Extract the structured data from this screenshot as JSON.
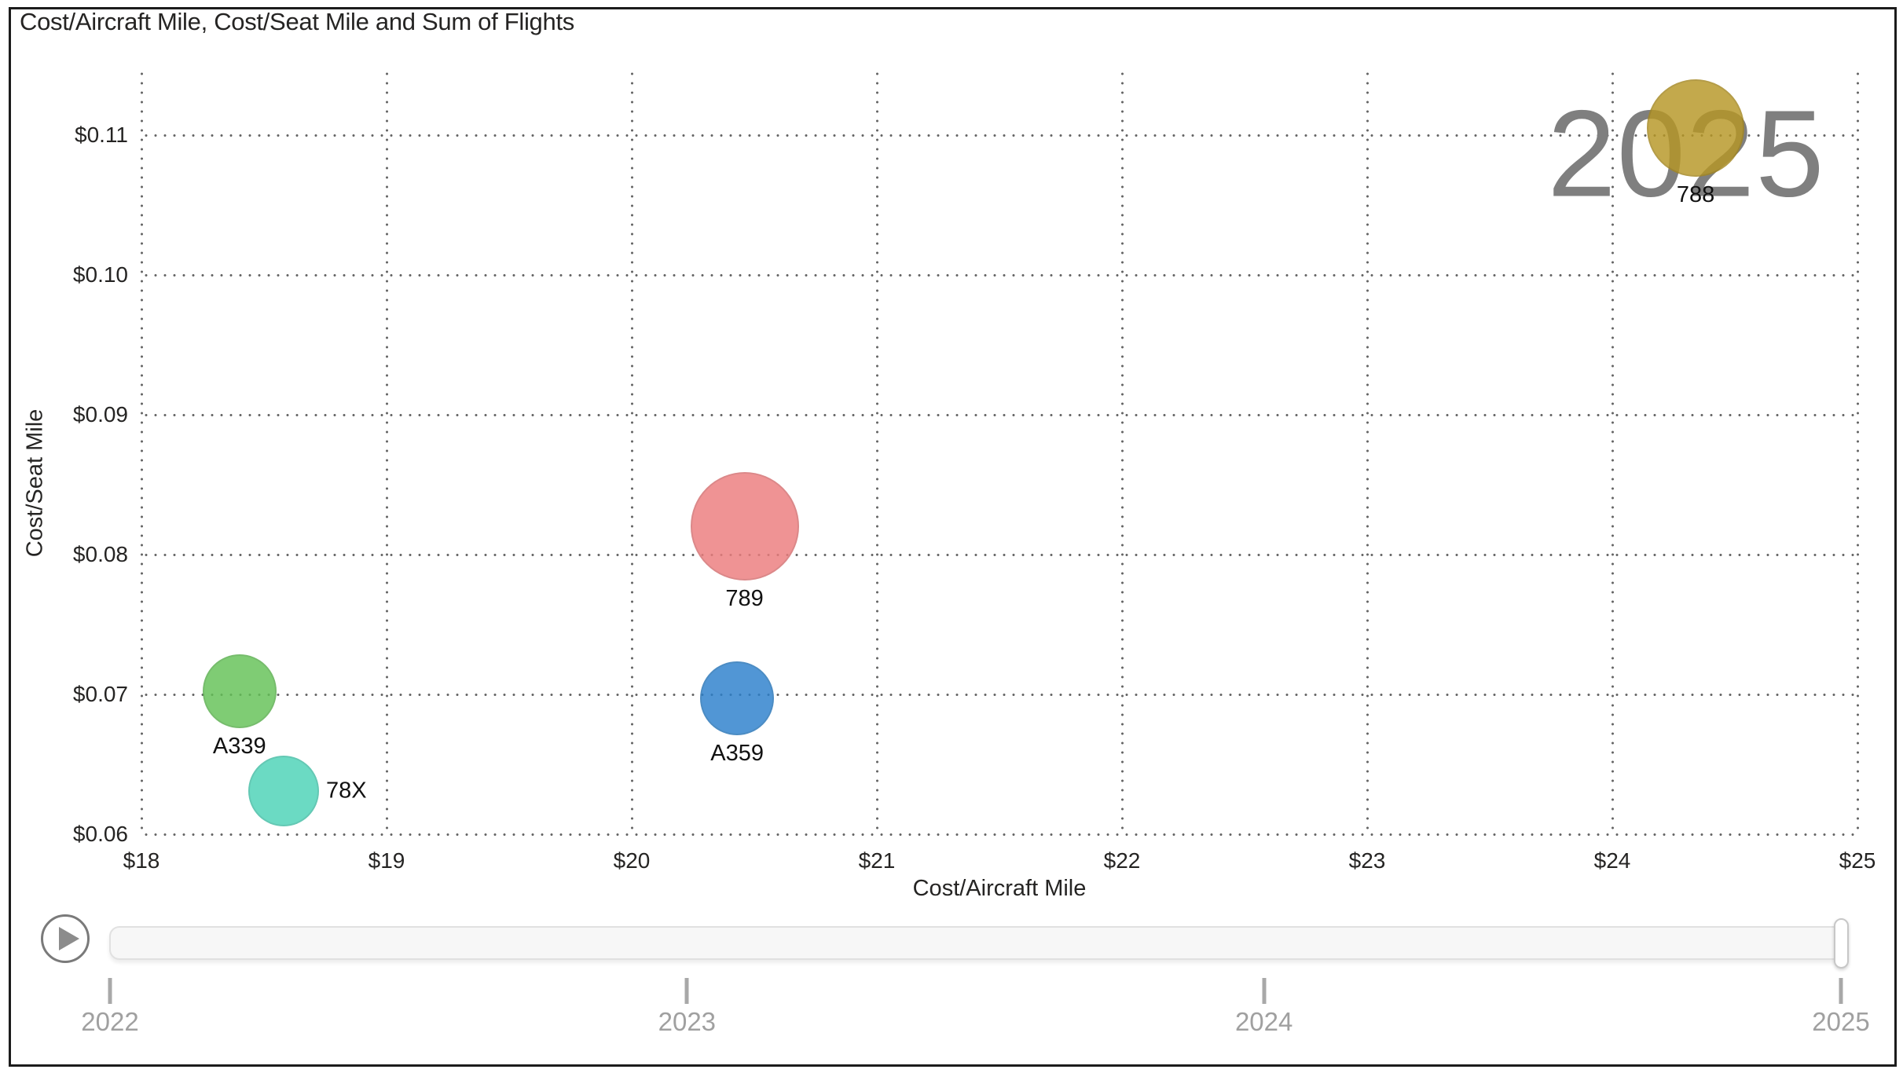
{
  "title": "Cost/Aircraft Mile, Cost/Seat Mile and Sum of Flights",
  "chart_data": {
    "type": "scatter",
    "title": "Cost/Aircraft Mile, Cost/Seat Mile and Sum of Flights",
    "xlabel": "Cost/Aircraft Mile",
    "ylabel": "Cost/Seat Mile",
    "size_measure": "Sum of Flights",
    "xlim": [
      18,
      25
    ],
    "ylim": [
      0.06,
      0.115
    ],
    "grid": "dotted",
    "x_ticks": [
      {
        "value": 18,
        "label": "$18"
      },
      {
        "value": 19,
        "label": "$19"
      },
      {
        "value": 20,
        "label": "$20"
      },
      {
        "value": 21,
        "label": "$21"
      },
      {
        "value": 22,
        "label": "$22"
      },
      {
        "value": 23,
        "label": "$23"
      },
      {
        "value": 24,
        "label": "$24"
      },
      {
        "value": 25,
        "label": "$25"
      }
    ],
    "y_ticks": [
      {
        "value": 0.06,
        "label": "$0.06"
      },
      {
        "value": 0.07,
        "label": "$0.07"
      },
      {
        "value": 0.08,
        "label": "$0.08"
      },
      {
        "value": 0.09,
        "label": "$0.09"
      },
      {
        "value": 0.1,
        "label": "$0.10"
      },
      {
        "value": 0.11,
        "label": "$0.11"
      }
    ],
    "points": [
      {
        "label": "A339",
        "x": 18.4,
        "y": 0.0702,
        "radius_px": 47,
        "color": "#63C256",
        "label_pos": "below"
      },
      {
        "label": "78X",
        "x": 18.58,
        "y": 0.0631,
        "radius_px": 45,
        "color": "#4BD3B7",
        "label_pos": "right"
      },
      {
        "label": "789",
        "x": 20.46,
        "y": 0.082,
        "radius_px": 69,
        "color": "#EC7C7D",
        "label_pos": "below"
      },
      {
        "label": "A359",
        "x": 20.43,
        "y": 0.0697,
        "radius_px": 47,
        "color": "#2B80CC",
        "label_pos": "below"
      },
      {
        "label": "788",
        "x": 24.34,
        "y": 0.1105,
        "radius_px": 62,
        "color": "#B79725",
        "label_pos": "below"
      }
    ],
    "watermark": "2025"
  },
  "timeline": {
    "years": [
      "2022",
      "2023",
      "2024",
      "2025"
    ],
    "selected_year": "2025"
  }
}
